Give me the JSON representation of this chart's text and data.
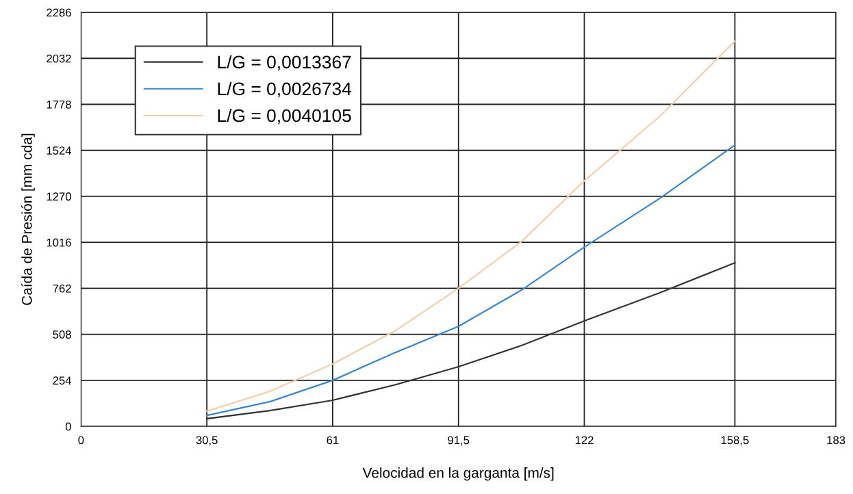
{
  "chart_data": {
    "type": "line",
    "xlabel": "Velocidad en la garganta [m/s]",
    "ylabel": "Caída de Presión [mm cda]",
    "x": [
      30.5,
      45.75,
      61,
      76.25,
      91.5,
      106.75,
      122,
      140.25,
      158.5
    ],
    "series": [
      {
        "name": "L/G = 0,0013367",
        "color": "#333333",
        "values": [
          42,
          87,
          144,
          230,
          329,
          446,
          582,
          737,
          903
        ]
      },
      {
        "name": "L/G = 0,0026734",
        "color": "#3a87cc",
        "values": [
          60,
          136,
          254,
          408,
          552,
          752,
          990,
          1258,
          1553
        ]
      },
      {
        "name": "L/G = 0,0040105",
        "color": "#f3cfa8",
        "values": [
          83,
          193,
          344,
          529,
          762,
          1020,
          1356,
          1711,
          2127
        ]
      }
    ],
    "xlim": [
      0,
      183
    ],
    "xticks": [
      0,
      {
        "value": 30.5,
        "label": "30,5"
      },
      61,
      {
        "value": 91.5,
        "label": "91,5"
      },
      122,
      {
        "value": 158.5,
        "label": "158,5"
      },
      183
    ],
    "ylim": [
      0,
      2286
    ],
    "yticks": [
      0,
      254,
      508,
      762,
      1016,
      1270,
      1524,
      1778,
      2032,
      2286
    ],
    "grid": true,
    "legend": "top left",
    "marker": "none",
    "line_style": "solid"
  }
}
